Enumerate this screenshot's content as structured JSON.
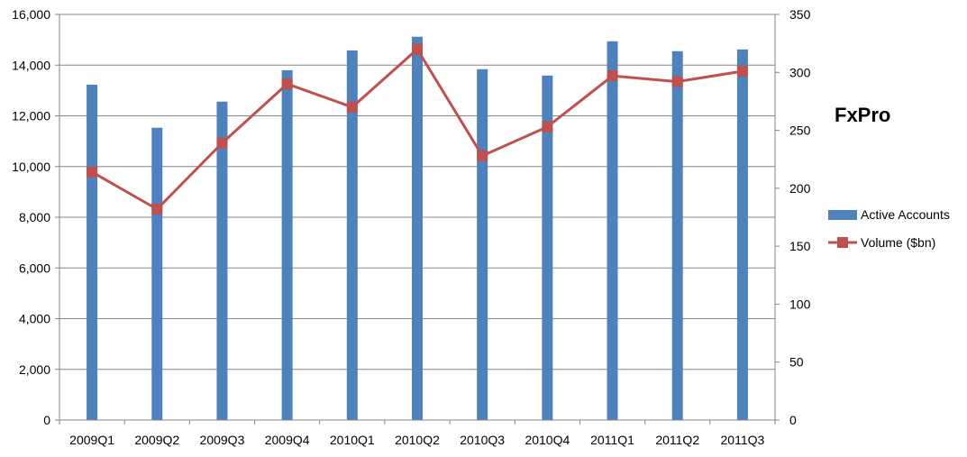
{
  "chart_data": {
    "type": "bar",
    "title": "FxPro",
    "categories": [
      "2009Q1",
      "2009Q2",
      "2009Q3",
      "2009Q4",
      "2010Q1",
      "2010Q2",
      "2010Q3",
      "2010Q4",
      "2011Q1",
      "2011Q2",
      "2011Q3"
    ],
    "series": [
      {
        "name": "Active Accounts",
        "type": "bar",
        "axis": "left",
        "color": "#4f81bd",
        "values": [
          13230,
          11530,
          12560,
          13800,
          14580,
          15120,
          13840,
          13590,
          14940,
          14550,
          14620
        ]
      },
      {
        "name": "Volume ($bn)",
        "type": "line",
        "axis": "right",
        "color": "#c0504d",
        "values": [
          214,
          182,
          239,
          290,
          270,
          320,
          228,
          253,
          297,
          292,
          301
        ]
      }
    ],
    "left_axis": {
      "min": 0,
      "max": 16000,
      "step": 2000,
      "tick_labels": [
        "0",
        "2,000",
        "4,000",
        "6,000",
        "8,000",
        "10,000",
        "12,000",
        "14,000",
        "16,000"
      ]
    },
    "right_axis": {
      "min": 0,
      "max": 350,
      "step": 50,
      "tick_labels": [
        "0",
        "50",
        "100",
        "150",
        "200",
        "250",
        "300",
        "350"
      ]
    },
    "xlabel": "",
    "ylabel": "",
    "grid": true,
    "legend_position": "right"
  }
}
